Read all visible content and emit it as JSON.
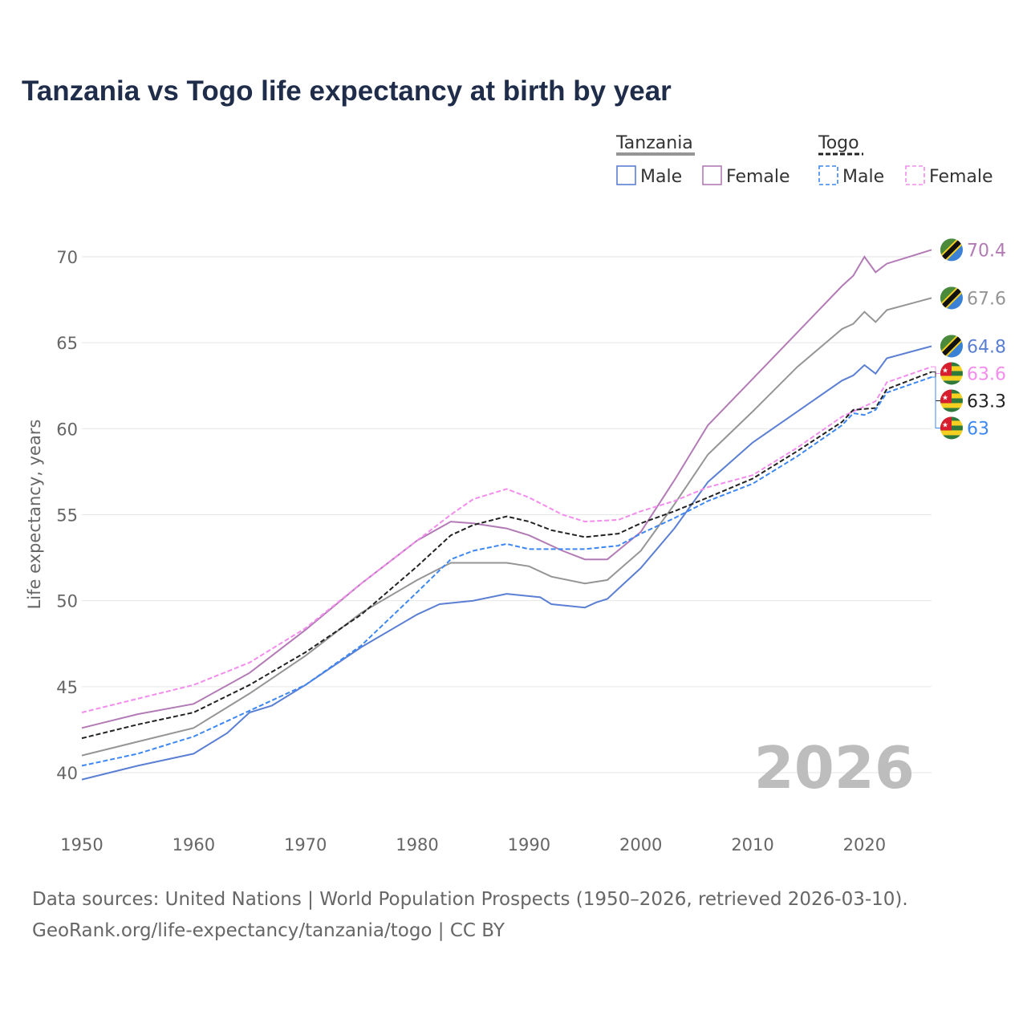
{
  "chart_data": {
    "type": "line",
    "title": "Tanzania vs Togo life expectancy at birth by year",
    "xlabel": "",
    "ylabel": "Life expectancy, years",
    "xlim": [
      1950,
      2026
    ],
    "ylim": [
      38.5,
      71
    ],
    "xticks": [
      1950,
      1960,
      1970,
      1980,
      1990,
      2000,
      2010,
      2020
    ],
    "yticks": [
      40,
      45,
      50,
      55,
      60,
      65,
      70
    ],
    "grid": true,
    "year_label": "2026",
    "legend": {
      "placement": "top-right",
      "groups": [
        {
          "name": "Tanzania",
          "items": [
            "Male",
            "Female"
          ]
        },
        {
          "name": "Togo",
          "items": [
            "Male",
            "Female"
          ]
        }
      ]
    },
    "series": [
      {
        "name": "Tanzania Female",
        "country": "Tanzania",
        "color": "#b27bb5",
        "dashed": false,
        "end_label": "70.4",
        "x": [
          1950,
          1955,
          1960,
          1965,
          1970,
          1975,
          1980,
          1983,
          1985,
          1988,
          1990,
          1993,
          1995,
          1997,
          2000,
          2003,
          2006,
          2010,
          2014,
          2018,
          2019,
          2020,
          2021,
          2022,
          2026
        ],
        "y": [
          42.6,
          43.4,
          44.0,
          45.8,
          48.3,
          51.0,
          53.5,
          54.6,
          54.5,
          54.2,
          53.8,
          52.9,
          52.4,
          52.4,
          54.0,
          57.0,
          60.2,
          62.9,
          65.6,
          68.3,
          68.9,
          70.0,
          69.1,
          69.6,
          70.4
        ]
      },
      {
        "name": "Tanzania Total",
        "country": "Tanzania",
        "color": "#959595",
        "dashed": false,
        "end_label": "67.6",
        "x": [
          1950,
          1955,
          1960,
          1965,
          1970,
          1975,
          1980,
          1983,
          1988,
          1990,
          1992,
          1995,
          1997,
          2000,
          2003,
          2006,
          2010,
          2014,
          2018,
          2019,
          2020,
          2021,
          2022,
          2026
        ],
        "y": [
          41.0,
          41.8,
          42.6,
          44.6,
          46.8,
          49.3,
          51.2,
          52.2,
          52.2,
          52.0,
          51.4,
          51.0,
          51.2,
          52.9,
          55.6,
          58.5,
          61.0,
          63.6,
          65.8,
          66.1,
          66.8,
          66.2,
          66.9,
          67.6
        ]
      },
      {
        "name": "Tanzania Male",
        "country": "Tanzania",
        "color": "#5b7fd3",
        "dashed": false,
        "end_label": "64.8",
        "x": [
          1950,
          1955,
          1960,
          1963,
          1965,
          1967,
          1970,
          1975,
          1980,
          1982,
          1985,
          1988,
          1991,
          1992,
          1995,
          1996,
          1997,
          2000,
          2003,
          2006,
          2010,
          2014,
          2018,
          2019,
          2020,
          2021,
          2022,
          2026
        ],
        "y": [
          39.6,
          40.4,
          41.1,
          42.3,
          43.5,
          43.9,
          45.1,
          47.3,
          49.2,
          49.8,
          50.0,
          50.4,
          50.2,
          49.8,
          49.6,
          49.9,
          50.1,
          51.9,
          54.2,
          56.9,
          59.2,
          61.0,
          62.8,
          63.1,
          63.7,
          63.2,
          64.1,
          64.8
        ]
      },
      {
        "name": "Togo Female",
        "country": "Togo",
        "color": "#f28ded",
        "dashed": true,
        "end_label": "63.6",
        "x": [
          1950,
          1955,
          1960,
          1965,
          1970,
          1975,
          1980,
          1983,
          1985,
          1988,
          1990,
          1993,
          1995,
          1998,
          2000,
          2003,
          2006,
          2010,
          2014,
          2018,
          2020,
          2021,
          2022,
          2026
        ],
        "y": [
          43.5,
          44.3,
          45.1,
          46.4,
          48.4,
          51.0,
          53.5,
          55.0,
          55.9,
          56.5,
          56.0,
          55.0,
          54.6,
          54.7,
          55.2,
          55.8,
          56.6,
          57.3,
          58.9,
          60.7,
          61.3,
          61.6,
          62.7,
          63.6
        ]
      },
      {
        "name": "Togo Total",
        "country": "Togo",
        "color": "#222222",
        "dashed": true,
        "end_label": "63.3",
        "x": [
          1950,
          1955,
          1960,
          1965,
          1970,
          1975,
          1980,
          1983,
          1985,
          1988,
          1990,
          1992,
          1995,
          1998,
          2000,
          2003,
          2006,
          2010,
          2014,
          2018,
          2019,
          2021,
          2022,
          2026
        ],
        "y": [
          42.0,
          42.8,
          43.5,
          45.1,
          47.0,
          49.2,
          52.0,
          53.8,
          54.4,
          54.9,
          54.6,
          54.1,
          53.7,
          53.9,
          54.5,
          55.2,
          56.0,
          57.1,
          58.7,
          60.4,
          61.1,
          61.2,
          62.3,
          63.3
        ]
      },
      {
        "name": "Togo Male",
        "country": "Togo",
        "color": "#3d87f2",
        "dashed": true,
        "end_label": "63",
        "x": [
          1950,
          1955,
          1960,
          1965,
          1970,
          1975,
          1980,
          1983,
          1985,
          1988,
          1990,
          1992,
          1995,
          1998,
          2000,
          2003,
          2006,
          2010,
          2014,
          2018,
          2019,
          2020,
          2021,
          2022,
          2026
        ],
        "y": [
          40.4,
          41.1,
          42.1,
          43.6,
          45.1,
          47.4,
          50.5,
          52.4,
          52.9,
          53.3,
          53.0,
          53.0,
          53.0,
          53.2,
          53.9,
          54.8,
          55.8,
          56.8,
          58.4,
          60.2,
          60.9,
          60.8,
          61.1,
          62.1,
          63.0
        ]
      }
    ]
  },
  "footer": {
    "line1": "Data sources: United Nations | World Population Prospects (1950–2026, retrieved 2026-03-10).",
    "line2": "GeoRank.org/life-expectancy/tanzania/togo | CC BY"
  }
}
